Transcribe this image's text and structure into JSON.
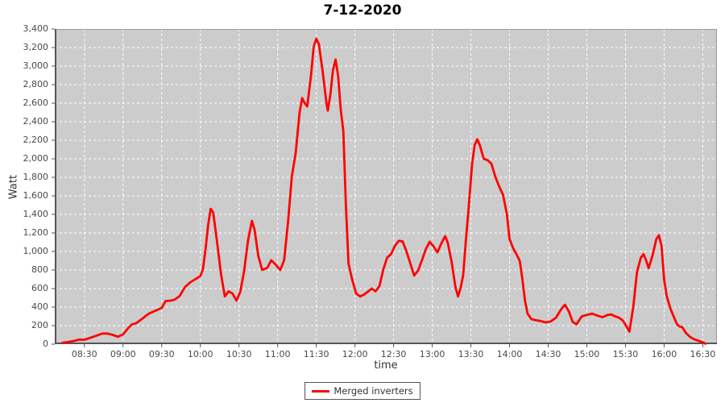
{
  "title": "7-12-2020",
  "y_axis": {
    "label": "Watt",
    "ticks": [
      "0",
      "200",
      "400",
      "600",
      "800",
      "1,000",
      "1,200",
      "1,400",
      "1,600",
      "1,800",
      "2,000",
      "2,200",
      "2,400",
      "2,600",
      "2,800",
      "3,000",
      "3,200",
      "3,400"
    ]
  },
  "x_axis": {
    "label": "time",
    "ticks": [
      "08:30",
      "09:00",
      "09:30",
      "10:00",
      "10:30",
      "11:00",
      "11:30",
      "12:00",
      "12:30",
      "13:00",
      "13:30",
      "14:00",
      "14:30",
      "15:00",
      "15:30",
      "16:00",
      "16:30"
    ]
  },
  "legend": {
    "items": [
      {
        "label": "Merged inverters",
        "color": "#ff0000"
      }
    ]
  },
  "colors": {
    "plot_bg": "#cccccc",
    "grid": "#ffffff",
    "series": "#ff0000",
    "plot_border": "#9a9a9a",
    "axis_line": "#55555a",
    "tick_text": "#4a4a4a"
  },
  "chart_data": {
    "type": "line",
    "title": "7-12-2020",
    "xlabel": "time",
    "ylabel": "Watt",
    "ylim": [
      0,
      3400
    ],
    "xlim": [
      "08:07",
      "16:41"
    ],
    "x_tick_interval_minutes": 30,
    "y_tick_interval": 200,
    "grid": true,
    "grid_style": "white dashed on gray",
    "legend_position": "bottom-center",
    "series": [
      {
        "name": "Merged inverters",
        "color": "#ff0000",
        "points": [
          [
            "08:13",
            15
          ],
          [
            "08:18",
            25
          ],
          [
            "08:22",
            35
          ],
          [
            "08:26",
            50
          ],
          [
            "08:30",
            48
          ],
          [
            "08:35",
            70
          ],
          [
            "08:40",
            95
          ],
          [
            "08:44",
            115
          ],
          [
            "08:48",
            115
          ],
          [
            "08:52",
            100
          ],
          [
            "08:56",
            80
          ],
          [
            "09:00",
            105
          ],
          [
            "09:04",
            175
          ],
          [
            "09:07",
            215
          ],
          [
            "09:10",
            225
          ],
          [
            "09:15",
            275
          ],
          [
            "09:20",
            330
          ],
          [
            "09:25",
            360
          ],
          [
            "09:30",
            390
          ],
          [
            "09:33",
            465
          ],
          [
            "09:37",
            470
          ],
          [
            "09:40",
            480
          ],
          [
            "09:44",
            520
          ],
          [
            "09:48",
            615
          ],
          [
            "09:52",
            665
          ],
          [
            "09:56",
            700
          ],
          [
            "10:00",
            735
          ],
          [
            "10:02",
            810
          ],
          [
            "10:04",
            1020
          ],
          [
            "10:06",
            1280
          ],
          [
            "10:08",
            1460
          ],
          [
            "10:10",
            1420
          ],
          [
            "10:13",
            1100
          ],
          [
            "10:16",
            760
          ],
          [
            "10:19",
            515
          ],
          [
            "10:22",
            570
          ],
          [
            "10:25",
            545
          ],
          [
            "10:28",
            470
          ],
          [
            "10:31",
            565
          ],
          [
            "10:34",
            790
          ],
          [
            "10:37",
            1120
          ],
          [
            "10:40",
            1330
          ],
          [
            "10:42",
            1240
          ],
          [
            "10:45",
            950
          ],
          [
            "10:48",
            800
          ],
          [
            "10:52",
            825
          ],
          [
            "10:55",
            905
          ],
          [
            "10:58",
            865
          ],
          [
            "11:02",
            800
          ],
          [
            "11:05",
            905
          ],
          [
            "11:08",
            1310
          ],
          [
            "11:11",
            1810
          ],
          [
            "11:14",
            2065
          ],
          [
            "11:17",
            2500
          ],
          [
            "11:19",
            2655
          ],
          [
            "11:21",
            2600
          ],
          [
            "11:23",
            2565
          ],
          [
            "11:26",
            2910
          ],
          [
            "11:28",
            3210
          ],
          [
            "11:30",
            3295
          ],
          [
            "11:32",
            3240
          ],
          [
            "11:35",
            2940
          ],
          [
            "11:38",
            2590
          ],
          [
            "11:39",
            2520
          ],
          [
            "11:41",
            2700
          ],
          [
            "11:43",
            2960
          ],
          [
            "11:45",
            3070
          ],
          [
            "11:47",
            2890
          ],
          [
            "11:49",
            2530
          ],
          [
            "11:51",
            2300
          ],
          [
            "11:53",
            1500
          ],
          [
            "11:55",
            870
          ],
          [
            "11:58",
            690
          ],
          [
            "12:01",
            545
          ],
          [
            "12:04",
            515
          ],
          [
            "12:07",
            535
          ],
          [
            "12:10",
            565
          ],
          [
            "12:13",
            600
          ],
          [
            "12:16",
            570
          ],
          [
            "12:19",
            625
          ],
          [
            "12:22",
            805
          ],
          [
            "12:25",
            935
          ],
          [
            "12:28",
            970
          ],
          [
            "12:31",
            1060
          ],
          [
            "12:34",
            1115
          ],
          [
            "12:37",
            1110
          ],
          [
            "12:40",
            1000
          ],
          [
            "12:43",
            870
          ],
          [
            "12:46",
            740
          ],
          [
            "12:49",
            795
          ],
          [
            "12:52",
            905
          ],
          [
            "12:55",
            1025
          ],
          [
            "12:58",
            1105
          ],
          [
            "13:01",
            1055
          ],
          [
            "13:04",
            990
          ],
          [
            "13:07",
            1085
          ],
          [
            "13:10",
            1165
          ],
          [
            "13:12",
            1095
          ],
          [
            "13:15",
            890
          ],
          [
            "13:18",
            615
          ],
          [
            "13:20",
            515
          ],
          [
            "13:22",
            605
          ],
          [
            "13:24",
            745
          ],
          [
            "13:26",
            1105
          ],
          [
            "13:28",
            1430
          ],
          [
            "13:31",
            1950
          ],
          [
            "13:33",
            2150
          ],
          [
            "13:35",
            2210
          ],
          [
            "13:37",
            2145
          ],
          [
            "13:40",
            2000
          ],
          [
            "13:43",
            1985
          ],
          [
            "13:46",
            1945
          ],
          [
            "13:49",
            1805
          ],
          [
            "13:52",
            1700
          ],
          [
            "13:55",
            1610
          ],
          [
            "13:58",
            1400
          ],
          [
            "14:00",
            1135
          ],
          [
            "14:03",
            1030
          ],
          [
            "14:06",
            955
          ],
          [
            "14:08",
            895
          ],
          [
            "14:10",
            700
          ],
          [
            "14:12",
            470
          ],
          [
            "14:14",
            330
          ],
          [
            "14:17",
            270
          ],
          [
            "14:20",
            260
          ],
          [
            "14:24",
            250
          ],
          [
            "14:28",
            235
          ],
          [
            "14:32",
            245
          ],
          [
            "14:36",
            285
          ],
          [
            "14:40",
            375
          ],
          [
            "14:43",
            425
          ],
          [
            "14:46",
            355
          ],
          [
            "14:49",
            240
          ],
          [
            "14:52",
            215
          ],
          [
            "14:56",
            300
          ],
          [
            "15:00",
            315
          ],
          [
            "15:04",
            330
          ],
          [
            "15:08",
            310
          ],
          [
            "15:12",
            290
          ],
          [
            "15:16",
            315
          ],
          [
            "15:19",
            320
          ],
          [
            "15:22",
            300
          ],
          [
            "15:25",
            285
          ],
          [
            "15:28",
            255
          ],
          [
            "15:31",
            185
          ],
          [
            "15:33",
            135
          ],
          [
            "15:36",
            400
          ],
          [
            "15:39",
            780
          ],
          [
            "15:42",
            935
          ],
          [
            "15:44",
            970
          ],
          [
            "15:46",
            905
          ],
          [
            "15:48",
            820
          ],
          [
            "15:51",
            955
          ],
          [
            "15:54",
            1135
          ],
          [
            "15:56",
            1175
          ],
          [
            "15:58",
            1060
          ],
          [
            "16:00",
            700
          ],
          [
            "16:02",
            520
          ],
          [
            "16:05",
            380
          ],
          [
            "16:08",
            280
          ],
          [
            "16:10",
            215
          ],
          [
            "16:12",
            190
          ],
          [
            "16:14",
            185
          ],
          [
            "16:17",
            120
          ],
          [
            "16:20",
            80
          ],
          [
            "16:23",
            55
          ],
          [
            "16:26",
            40
          ],
          [
            "16:29",
            25
          ],
          [
            "16:31",
            15
          ],
          [
            "16:32",
            5
          ]
        ]
      }
    ]
  }
}
